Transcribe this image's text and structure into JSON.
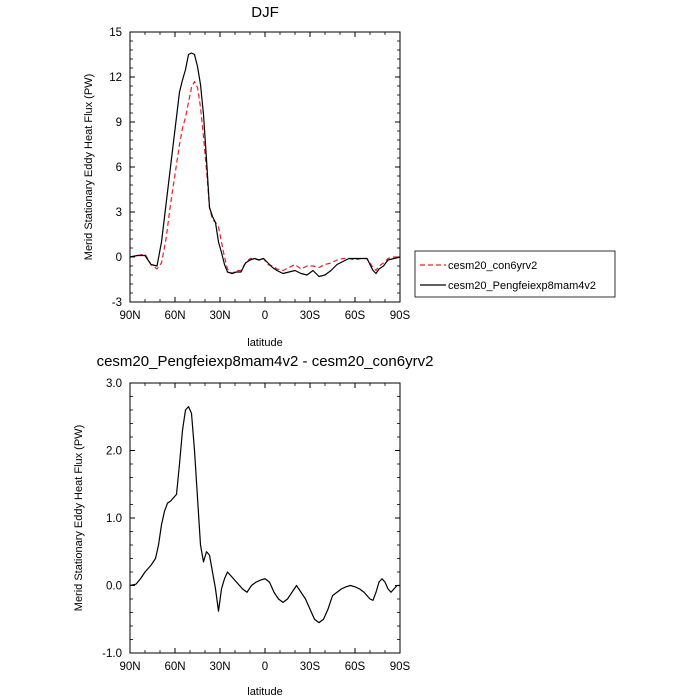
{
  "chart_data": [
    {
      "type": "line",
      "title": "DJF",
      "xlabel": "latitude",
      "ylabel": "Merid Stationary Eddy Heat Flux (PW)",
      "xlim": [
        90,
        -90
      ],
      "ylim": [
        -3,
        15
      ],
      "x_ticks": [
        90,
        60,
        30,
        0,
        -30,
        -60,
        -90
      ],
      "x_tick_labels": [
        "90N",
        "60N",
        "30N",
        "0",
        "30S",
        "60S",
        "90S"
      ],
      "y_ticks": [
        -3,
        0,
        3,
        6,
        9,
        12,
        15
      ],
      "y_tick_labels": [
        "-3",
        "0",
        "3",
        "6",
        "9",
        "12",
        "15"
      ],
      "grid": false,
      "legend": "right",
      "series": [
        {
          "name": "cesm20_con6yrv2",
          "color": "#e8202a",
          "dash": true,
          "x": [
            90,
            85,
            80,
            76,
            72,
            69,
            66,
            63,
            60,
            57,
            55,
            53,
            51,
            49,
            47,
            45,
            43,
            41,
            39,
            37,
            35,
            33,
            31,
            29,
            27,
            25,
            22,
            19,
            16,
            13,
            10,
            7,
            4,
            1,
            -2,
            -5,
            -8,
            -12,
            -16,
            -20,
            -24,
            -28,
            -32,
            -36,
            -40,
            -44,
            -48,
            -52,
            -56,
            -60,
            -64,
            -68,
            -72,
            -74,
            -76,
            -79,
            -82,
            -86,
            -90
          ],
          "y": [
            0,
            0.1,
            0.2,
            -0.5,
            -0.8,
            -0.4,
            1.2,
            3.5,
            5.5,
            7.5,
            8.6,
            9.3,
            10.3,
            11.3,
            11.7,
            11.3,
            10.0,
            8.0,
            5.8,
            3.3,
            2.5,
            2.3,
            2.0,
            1.0,
            0,
            -0.8,
            -1.1,
            -0.9,
            -0.9,
            -0.4,
            -0.1,
            -0.1,
            -0.2,
            -0.1,
            -0.5,
            -0.6,
            -0.8,
            -0.9,
            -0.7,
            -0.5,
            -0.8,
            -0.6,
            -0.6,
            -0.7,
            -0.5,
            -0.4,
            -0.2,
            -0.1,
            -0.1,
            -0.2,
            -0.1,
            -0.1,
            -0.7,
            -0.9,
            -0.6,
            -0.4,
            -0.1,
            0,
            0
          ]
        },
        {
          "name": "cesm20_Pengfeiexp8mam4v2",
          "color": "#000000",
          "dash": false,
          "x": [
            90,
            85,
            80,
            76,
            72,
            69,
            66,
            63,
            60,
            57,
            55,
            53,
            51,
            49,
            47,
            45,
            43,
            41,
            39,
            37,
            35,
            33,
            31,
            29,
            27,
            25,
            22,
            19,
            16,
            13,
            10,
            7,
            4,
            1,
            -2,
            -5,
            -8,
            -12,
            -16,
            -20,
            -24,
            -28,
            -32,
            -36,
            -40,
            -44,
            -48,
            -52,
            -56,
            -60,
            -64,
            -68,
            -72,
            -74,
            -76,
            -79,
            -82,
            -86,
            -90
          ],
          "y": [
            0,
            0.1,
            0.1,
            -0.5,
            -0.6,
            1.0,
            3.5,
            6.0,
            8.5,
            11.0,
            11.8,
            12.5,
            13.5,
            13.6,
            13.5,
            12.7,
            11.5,
            9.5,
            6.5,
            3.3,
            2.7,
            2.3,
            1.0,
            0.3,
            -0.5,
            -1.0,
            -1.1,
            -1.0,
            -1.0,
            -0.4,
            -0.2,
            -0.1,
            -0.2,
            -0.1,
            -0.4,
            -0.7,
            -0.9,
            -1.1,
            -1.0,
            -0.9,
            -1.1,
            -1.2,
            -0.9,
            -1.3,
            -1.2,
            -0.9,
            -0.5,
            -0.3,
            -0.1,
            -0.1,
            -0.1,
            -0.1,
            -0.9,
            -1.1,
            -0.8,
            -0.6,
            -0.2,
            -0.1,
            0
          ]
        }
      ]
    },
    {
      "type": "line",
      "title": "cesm20_Pengfeiexp8mam4v2 - cesm20_con6yrv2",
      "xlabel": "latitude",
      "ylabel": "Merid Stationary Eddy Heat Flux (PW)",
      "xlim": [
        90,
        -90
      ],
      "ylim": [
        -1.0,
        3.0
      ],
      "x_ticks": [
        90,
        60,
        30,
        0,
        -30,
        -60,
        -90
      ],
      "x_tick_labels": [
        "90N",
        "60N",
        "30N",
        "0",
        "30S",
        "60S",
        "90S"
      ],
      "y_ticks": [
        -1.0,
        0.0,
        1.0,
        2.0,
        3.0
      ],
      "y_tick_labels": [
        "-1.0",
        "0.0",
        "1.0",
        "2.0",
        "3.0"
      ],
      "grid": false,
      "series": [
        {
          "color": "#000000",
          "dash": false,
          "x": [
            90,
            86,
            83,
            80,
            76,
            73,
            71,
            69,
            67,
            65,
            63,
            61,
            59,
            57,
            55,
            53,
            51,
            49,
            47,
            45,
            43,
            41,
            39,
            37,
            35,
            33,
            31,
            29,
            27,
            25,
            23,
            21,
            19,
            17,
            15,
            12,
            9,
            6,
            3,
            0,
            -3,
            -6,
            -9,
            -12,
            -15,
            -18,
            -21,
            -24,
            -27,
            -30,
            -33,
            -36,
            -39,
            -42,
            -45,
            -48,
            -51,
            -54,
            -57,
            -60,
            -63,
            -66,
            -68,
            -70,
            -72,
            -74,
            -76,
            -78,
            -80,
            -82,
            -84,
            -86,
            -88,
            -90
          ],
          "y": [
            0,
            0.02,
            0.1,
            0.2,
            0.3,
            0.4,
            0.6,
            0.9,
            1.1,
            1.22,
            1.25,
            1.3,
            1.35,
            1.8,
            2.3,
            2.6,
            2.65,
            2.55,
            2.0,
            1.3,
            0.6,
            0.35,
            0.5,
            0.45,
            0.2,
            -0.05,
            -0.38,
            -0.05,
            0.1,
            0.2,
            0.15,
            0.1,
            0.05,
            0.0,
            -0.05,
            -0.1,
            0.0,
            0.05,
            0.08,
            0.1,
            0.05,
            -0.1,
            -0.2,
            -0.25,
            -0.2,
            -0.1,
            0.0,
            -0.1,
            -0.2,
            -0.35,
            -0.5,
            -0.55,
            -0.5,
            -0.35,
            -0.15,
            -0.1,
            -0.05,
            -0.02,
            0.0,
            -0.02,
            -0.05,
            -0.1,
            -0.15,
            -0.2,
            -0.22,
            -0.1,
            0.05,
            0.1,
            0.05,
            -0.05,
            -0.1,
            -0.05,
            0.0,
            0.0
          ]
        }
      ]
    }
  ]
}
